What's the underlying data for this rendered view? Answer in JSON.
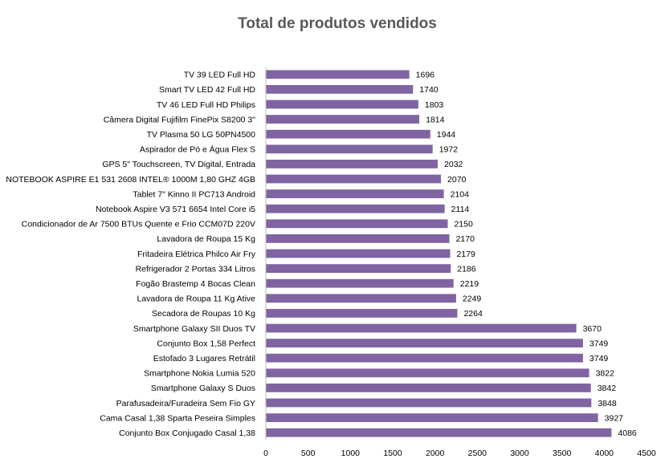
{
  "chart_data": {
    "type": "bar",
    "orientation": "horizontal",
    "title": "Total de produtos vendidos",
    "xlabel": "",
    "ylabel": "",
    "xlim": [
      0,
      4500
    ],
    "xticks": [
      0,
      500,
      1000,
      1500,
      2000,
      2500,
      3000,
      3500,
      4000,
      4500
    ],
    "grid": false,
    "legend": "none",
    "bar_color": "#8064A2",
    "categories": [
      "TV 39 LED Full HD",
      "Smart TV LED 42 Full HD",
      "TV 46 LED Full HD Philips",
      "Câmera Digital Fujifilm FinePix S8200 3\"",
      "TV Plasma 50 LG 50PN4500",
      "Aspirador de Pó e Água Flex S",
      "GPS 5\" Touchscreen, TV Digital, Entrada",
      "NOTEBOOK ASPIRE E1 531 2608 INTEL® 1000M 1,80 GHZ 4GB",
      "Tablet 7\" Kinno II PC713 Android",
      "Notebook Aspire V3 571 6654 Intel Core i5",
      "Condicionador de Ar 7500 BTUs Quente e Frio CCM07D 220V",
      "Lavadora de Roupa 15 Kg",
      "Fritadeira Elétrica Philco Air Fry",
      "Refrigerador 2 Portas 334 Litros",
      "Fogão Brastemp 4 Bocas Clean",
      "Lavadora de Roupa 11 Kg Ative",
      "Secadora de Roupas 10 Kg",
      "Smartphone Galaxy SII Duos TV",
      "Conjunto Box 1,58 Perfect",
      "Estofado 3 Lugares Retrátil",
      "Smartphone Nokia Lumia 520",
      "Smartphone Galaxy S Duos",
      "Parafusadeira/Furadeira Sem Fio GY",
      "Cama Casal 1,38 Sparta Peseira Simples",
      "Conjunto Box Conjugado Casal 1,38"
    ],
    "values": [
      1696,
      1740,
      1803,
      1814,
      1944,
      1972,
      2032,
      2070,
      2104,
      2114,
      2150,
      2170,
      2179,
      2186,
      2219,
      2249,
      2264,
      3670,
      3749,
      3749,
      3822,
      3842,
      3848,
      3927,
      4086
    ]
  }
}
